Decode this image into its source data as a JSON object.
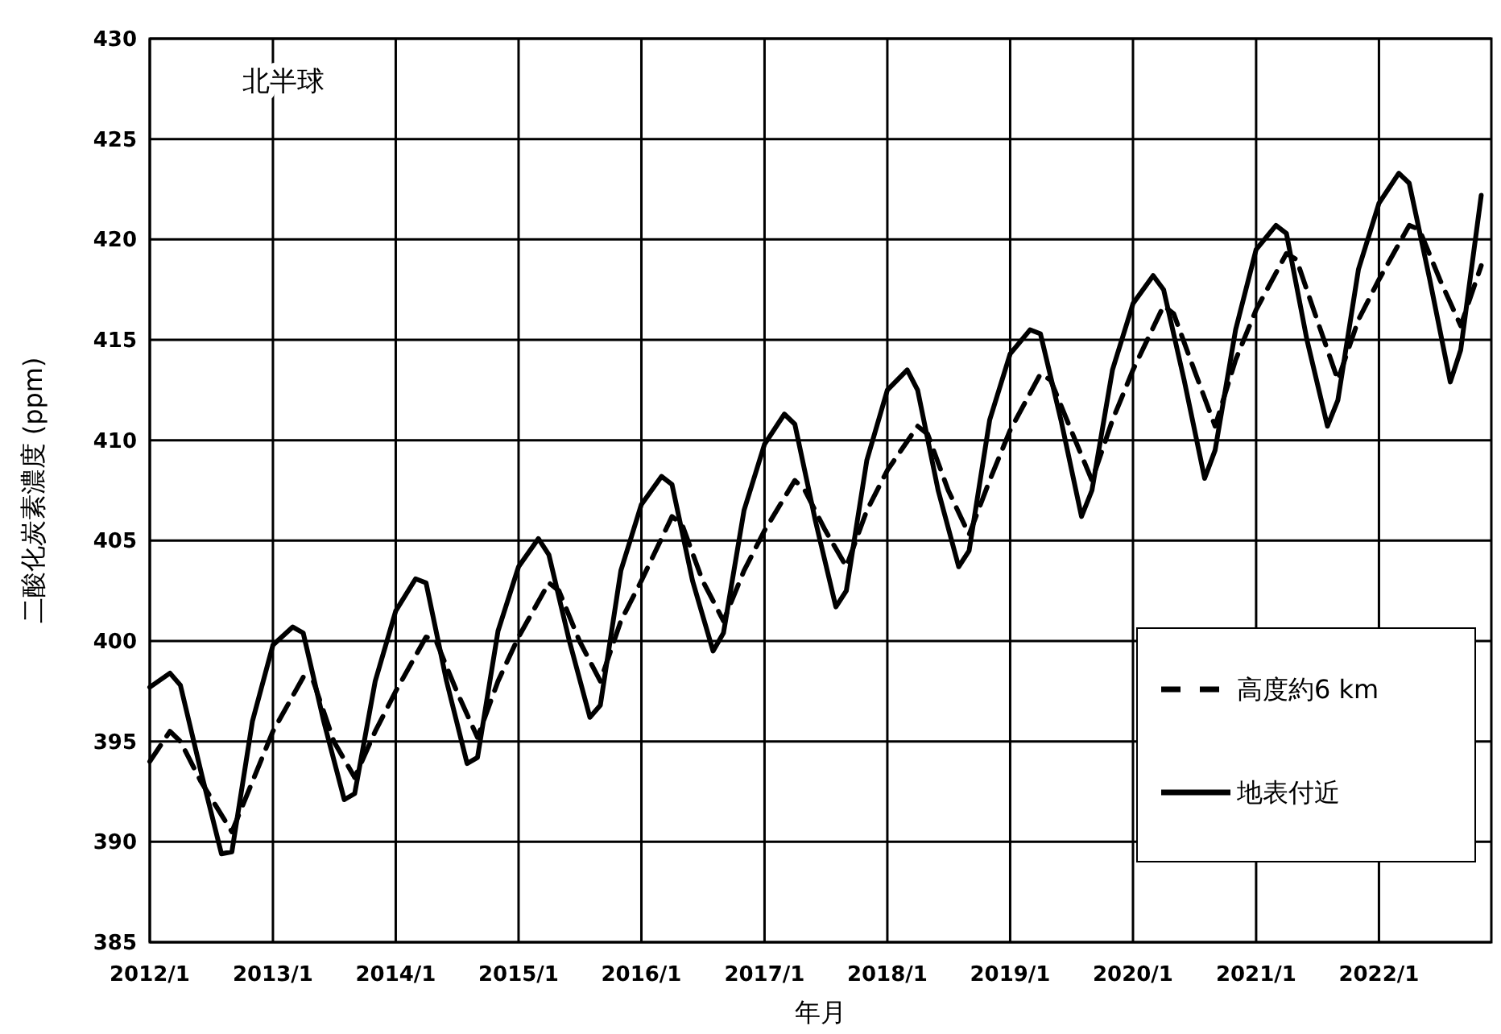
{
  "chart_data": {
    "type": "line",
    "title": "北半球",
    "xlabel": "年月",
    "ylabel": "二酸化炭素濃度 (ppm)",
    "xlim": [
      "2012-01",
      "2022-12"
    ],
    "xticks": [
      {
        "value": "2012-01",
        "label": "2012/1"
      },
      {
        "value": "2013-01",
        "label": "2013/1"
      },
      {
        "value": "2014-01",
        "label": "2014/1"
      },
      {
        "value": "2015-01",
        "label": "2015/1"
      },
      {
        "value": "2016-01",
        "label": "2016/1"
      },
      {
        "value": "2017-01",
        "label": "2017/1"
      },
      {
        "value": "2018-01",
        "label": "2018/1"
      },
      {
        "value": "2019-01",
        "label": "2019/1"
      },
      {
        "value": "2020-01",
        "label": "2020/1"
      },
      {
        "value": "2021-01",
        "label": "2021/1"
      },
      {
        "value": "2022-01",
        "label": "2022/1"
      }
    ],
    "ylim": [
      385,
      430
    ],
    "yticks": [
      385,
      390,
      395,
      400,
      405,
      410,
      415,
      420,
      425,
      430
    ],
    "grid": true,
    "legend": "bottom right",
    "series": [
      {
        "name": "高度約6 km",
        "color": "#000000",
        "line_style": "dashed",
        "x": [
          "2012-01",
          "2012-03",
          "2012-04",
          "2012-06",
          "2012-09",
          "2012-11",
          "2013-01",
          "2013-04",
          "2013-05",
          "2013-07",
          "2013-09",
          "2013-11",
          "2014-01",
          "2014-04",
          "2014-05",
          "2014-07",
          "2014-09",
          "2014-11",
          "2015-01",
          "2015-04",
          "2015-05",
          "2015-07",
          "2015-09",
          "2015-11",
          "2016-01",
          "2016-04",
          "2016-05",
          "2016-07",
          "2016-09",
          "2016-11",
          "2017-01",
          "2017-04",
          "2017-05",
          "2017-07",
          "2017-09",
          "2017-11",
          "2018-01",
          "2018-04",
          "2018-05",
          "2018-07",
          "2018-09",
          "2018-11",
          "2019-01",
          "2019-04",
          "2019-05",
          "2019-07",
          "2019-09",
          "2019-11",
          "2020-01",
          "2020-04",
          "2020-05",
          "2020-07",
          "2020-09",
          "2020-11",
          "2021-01",
          "2021-04",
          "2021-05",
          "2021-07",
          "2021-09",
          "2021-11",
          "2022-01",
          "2022-04",
          "2022-05",
          "2022-07",
          "2022-09",
          "2022-11"
        ],
        "values": [
          394,
          395.5,
          395,
          393,
          390.5,
          393,
          395.5,
          398.2,
          398,
          395,
          393.2,
          395.5,
          397.5,
          400.2,
          400,
          397.5,
          395.2,
          398,
          400.2,
          402.9,
          402.5,
          400,
          398,
          401,
          403,
          406.2,
          405.8,
          403,
          401,
          403.5,
          405.5,
          408,
          407.5,
          405.5,
          403.7,
          406.5,
          408.5,
          410.7,
          410.3,
          407.5,
          405.3,
          408,
          410.5,
          413.3,
          413,
          410.5,
          408,
          411,
          413.5,
          416.7,
          416.3,
          413.5,
          410.7,
          414,
          416.5,
          419.3,
          419,
          416,
          413,
          416,
          418,
          420.7,
          420.5,
          418,
          415.7,
          418.7
        ]
      },
      {
        "name": "地表付近",
        "color": "#000000",
        "line_style": "solid",
        "x": [
          "2012-01",
          "2012-03",
          "2012-04",
          "2012-06",
          "2012-08",
          "2012-09",
          "2012-11",
          "2013-01",
          "2013-03",
          "2013-04",
          "2013-06",
          "2013-08",
          "2013-09",
          "2013-11",
          "2014-01",
          "2014-03",
          "2014-04",
          "2014-06",
          "2014-08",
          "2014-09",
          "2014-11",
          "2015-01",
          "2015-03",
          "2015-04",
          "2015-06",
          "2015-08",
          "2015-09",
          "2015-11",
          "2016-01",
          "2016-03",
          "2016-04",
          "2016-06",
          "2016-08",
          "2016-09",
          "2016-11",
          "2017-01",
          "2017-03",
          "2017-04",
          "2017-06",
          "2017-08",
          "2017-09",
          "2017-11",
          "2018-01",
          "2018-03",
          "2018-04",
          "2018-06",
          "2018-08",
          "2018-09",
          "2018-11",
          "2019-01",
          "2019-03",
          "2019-04",
          "2019-06",
          "2019-08",
          "2019-09",
          "2019-11",
          "2020-01",
          "2020-03",
          "2020-04",
          "2020-06",
          "2020-08",
          "2020-09",
          "2020-11",
          "2021-01",
          "2021-03",
          "2021-04",
          "2021-06",
          "2021-08",
          "2021-09",
          "2021-11",
          "2022-01",
          "2022-03",
          "2022-04",
          "2022-06",
          "2022-08",
          "2022-09",
          "2022-11"
        ],
        "values": [
          397.7,
          398.4,
          397.8,
          393.5,
          389.4,
          389.5,
          396,
          399.8,
          400.7,
          400.4,
          396,
          392.1,
          392.4,
          398,
          401.5,
          403.1,
          402.9,
          398,
          393.9,
          394.2,
          400.5,
          403.7,
          405.1,
          404.3,
          400,
          396.2,
          396.8,
          403.5,
          406.8,
          408.2,
          407.8,
          403,
          399.5,
          400.4,
          406.5,
          409.8,
          411.3,
          410.8,
          406,
          401.7,
          402.5,
          409,
          412.5,
          413.5,
          412.5,
          407.5,
          403.7,
          404.5,
          411,
          414.3,
          415.5,
          415.3,
          411,
          406.2,
          407.5,
          413.5,
          416.8,
          418.2,
          417.5,
          413,
          408.1,
          409.5,
          415.5,
          419.5,
          420.7,
          420.3,
          415,
          410.7,
          412,
          418.5,
          421.8,
          423.3,
          422.8,
          418,
          412.9,
          414.5,
          422.2
        ]
      }
    ]
  }
}
